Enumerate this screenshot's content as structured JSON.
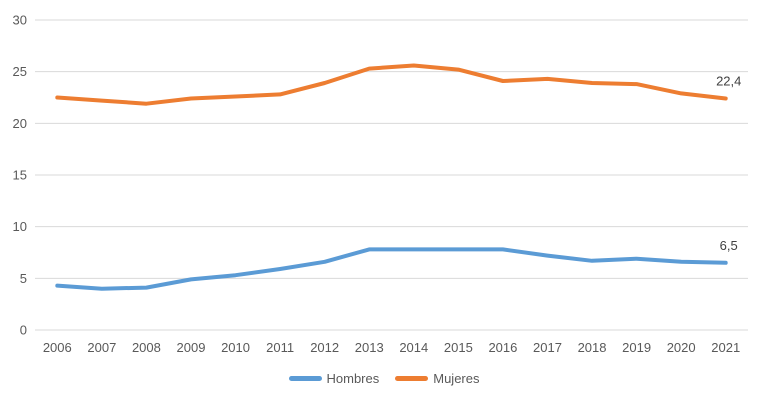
{
  "chart_data": {
    "type": "line",
    "title": "",
    "xlabel": "",
    "ylabel": "",
    "categories": [
      "2006",
      "2007",
      "2008",
      "2009",
      "2010",
      "2011",
      "2012",
      "2013",
      "2014",
      "2015",
      "2016",
      "2017",
      "2018",
      "2019",
      "2020",
      "2021"
    ],
    "series": [
      {
        "name": "Hombres",
        "color": "#5B9BD5",
        "values": [
          4.3,
          4.0,
          4.1,
          4.9,
          5.3,
          5.9,
          6.6,
          7.8,
          7.8,
          7.8,
          7.8,
          7.2,
          6.7,
          6.9,
          6.6,
          6.5
        ],
        "end_label": "6,5"
      },
      {
        "name": "Mujeres",
        "color": "#ED7D31",
        "values": [
          22.5,
          22.2,
          21.9,
          22.4,
          22.6,
          22.8,
          23.9,
          25.3,
          25.6,
          25.2,
          24.1,
          24.3,
          23.9,
          23.8,
          22.9,
          22.4
        ],
        "end_label": "22,4"
      }
    ],
    "ylim": [
      0,
      30
    ],
    "yticks": [
      0,
      5,
      10,
      15,
      20,
      25,
      30
    ],
    "grid": true,
    "legend_position": "bottom",
    "colors": {
      "grid": "#D9D9D9",
      "axis_text": "#595959",
      "data_label": "#404040",
      "background": "#FFFFFF"
    }
  }
}
